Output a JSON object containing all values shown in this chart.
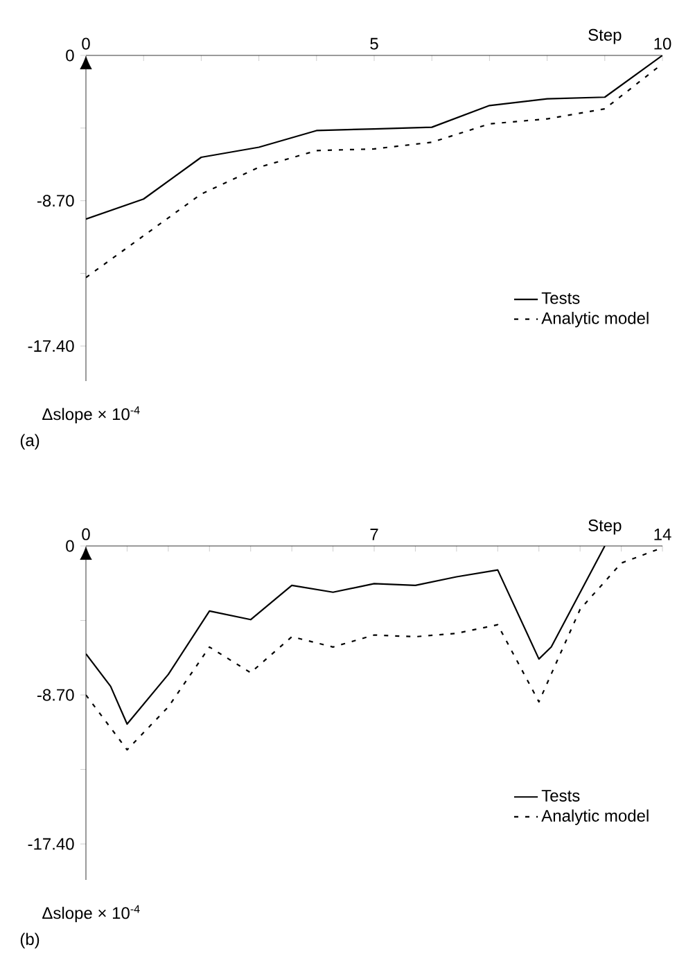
{
  "chart_data": [
    {
      "type": "line",
      "title": "(a)",
      "xlabel": "Step",
      "ylabel": "Δslope × 10$^{-4}$",
      "xlim": [
        0,
        10
      ],
      "ylim": [
        -19.5,
        0
      ],
      "xticks": [
        0,
        {
          "value": 1,
          "label": null
        },
        {
          "value": 2,
          "label": null
        },
        {
          "value": 3,
          "label": null
        },
        {
          "value": 4,
          "label": null
        },
        5,
        {
          "value": 6,
          "label": null
        },
        {
          "value": 7,
          "label": null
        },
        {
          "value": 8,
          "label": null
        },
        {
          "value": 9,
          "label": null
        },
        10
      ],
      "yticks": [
        0,
        {
          "value": -4.35,
          "label": null
        },
        {
          "value": -8.7,
          "label": "-8.70"
        },
        {
          "value": -13.05,
          "label": null
        },
        {
          "value": -17.4,
          "label": "-17.40"
        }
      ],
      "legend": "bottom right",
      "series": [
        {
          "name": "Tests",
          "color": "#000000",
          "line_style": "solid",
          "x": [
            0,
            1,
            2,
            3,
            4,
            5,
            6,
            7,
            8,
            9,
            10
          ],
          "values": [
            -9.8,
            -8.6,
            -6.1,
            -5.5,
            -4.5,
            -4.4,
            -4.3,
            -3.0,
            -2.6,
            -2.5,
            0
          ]
        },
        {
          "name": "Analytic model",
          "color": "#000000",
          "line_style": "dashed",
          "x": [
            0,
            1,
            2,
            3,
            4,
            5,
            6,
            7,
            8,
            9,
            10
          ],
          "values": [
            -13.3,
            -10.8,
            -8.3,
            -6.7,
            -5.7,
            -5.6,
            -5.2,
            -4.1,
            -3.8,
            -3.2,
            -0.5
          ]
        }
      ]
    },
    {
      "type": "line",
      "title": "(b)",
      "xlabel": "Step",
      "ylabel": "Δslope × 10$^{-4}$",
      "xlim": [
        0,
        14
      ],
      "ylim": [
        -19.5,
        0
      ],
      "xticks": [
        0,
        {
          "value": 1,
          "label": null
        },
        {
          "value": 2,
          "label": null
        },
        {
          "value": 3,
          "label": null
        },
        {
          "value": 4,
          "label": null
        },
        {
          "value": 5,
          "label": null
        },
        {
          "value": 6,
          "label": null
        },
        7,
        {
          "value": 8,
          "label": null
        },
        {
          "value": 9,
          "label": null
        },
        {
          "value": 10,
          "label": null
        },
        {
          "value": 11,
          "label": null
        },
        {
          "value": 12,
          "label": null
        },
        {
          "value": 13,
          "label": null
        },
        14
      ],
      "yticks": [
        0,
        {
          "value": -4.35,
          "label": null
        },
        {
          "value": -8.7,
          "label": "-8.70"
        },
        {
          "value": -13.05,
          "label": null
        },
        {
          "value": -17.4,
          "label": "-17.40"
        }
      ],
      "legend": "bottom right",
      "series": [
        {
          "name": "Tests",
          "color": "#000000",
          "line_style": "solid",
          "x": [
            0,
            0.6,
            1,
            2,
            3,
            4,
            5,
            6,
            7,
            8,
            9,
            10,
            11,
            11.3,
            12.6
          ],
          "values": [
            -6.3,
            -8.2,
            -10.4,
            -7.5,
            -3.8,
            -4.3,
            -2.3,
            -2.7,
            -2.2,
            -2.3,
            -1.8,
            -1.4,
            -6.6,
            -5.9,
            0
          ]
        },
        {
          "name": "Analytic model",
          "color": "#000000",
          "line_style": "dashed",
          "x": [
            0,
            1,
            2,
            3,
            4,
            5,
            6,
            7,
            8,
            9,
            10,
            11,
            12,
            13,
            14
          ],
          "values": [
            -8.7,
            -11.9,
            -9.4,
            -5.9,
            -7.4,
            -5.3,
            -5.9,
            -5.2,
            -5.3,
            -5.1,
            -4.6,
            -9.1,
            -3.7,
            -1.0,
            -0.1
          ]
        }
      ]
    }
  ]
}
